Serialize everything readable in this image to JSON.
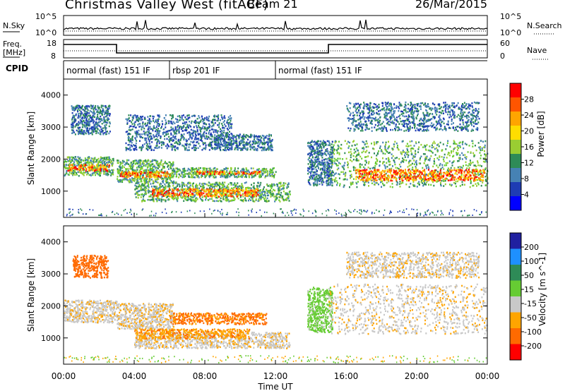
{
  "header": {
    "site": "Christmas Valley West (fitACF)",
    "beam": "Beam 21",
    "date": "26/Mar/2015"
  },
  "sky_panel": {
    "left_label": "N.Sky",
    "right_label": "N.Search",
    "axis_top": "10^5",
    "axis_bottom": "10^0"
  },
  "freq_panel": {
    "left_label_1": "Freq.",
    "left_label_2": "[MHz]",
    "left_top": "18",
    "left_bottom": "8",
    "right_label": "Nave",
    "right_top": "60",
    "right_bottom": "0"
  },
  "cpid_panel": {
    "label": "CPID",
    "segments": [
      {
        "start_hour": 0,
        "end_hour": 6,
        "label": "normal (fast) 151 IF"
      },
      {
        "start_hour": 6,
        "end_hour": 12,
        "label": "rbsp 201 IF"
      },
      {
        "start_hour": 12,
        "end_hour": 24,
        "label": "normal (fast) 151 IF"
      }
    ]
  },
  "colorbars": {
    "power": {
      "title": "Power [dB]",
      "ticks": [
        "28",
        "24",
        "20",
        "16",
        "12",
        "8",
        "4"
      ],
      "colors": [
        "#ff0000",
        "#ff5500",
        "#ffa500",
        "#ffdd00",
        "#9acd32",
        "#2e8b57",
        "#4682b4",
        "#1e3cb4",
        "#0000ff"
      ]
    },
    "velocity": {
      "title": "Velocity [m s^-1]",
      "ticks": [
        "200",
        "100",
        "50",
        "15",
        "-15",
        "-50",
        "-100",
        "-200"
      ],
      "colors": [
        "#2020a0",
        "#1e90ff",
        "#2e8b57",
        "#66cc33",
        "#c8c8c8",
        "#ffa500",
        "#ff6a00",
        "#ff0000"
      ]
    }
  },
  "chart_data": {
    "type": "heatmap",
    "xlabel": "Time UT",
    "x_ticks": [
      "00:00",
      "04:00",
      "08:00",
      "12:00",
      "16:00",
      "20:00",
      "00:00"
    ],
    "x_range_hours": [
      0,
      24
    ],
    "panels": [
      {
        "name": "power",
        "ylabel": "Slant Range [km]",
        "y_range": [
          180,
          4500
        ],
        "y_ticks": [
          1000,
          2000,
          3000,
          4000
        ],
        "regions": [
          {
            "t": [
              0,
              2.8
            ],
            "r": [
              1500,
              2100
            ],
            "level": "medium"
          },
          {
            "t": [
              0.2,
              2.6
            ],
            "r": [
              1650,
              1850
            ],
            "level": "high"
          },
          {
            "t": [
              0.4,
              2.6
            ],
            "r": [
              2800,
              3700
            ],
            "level": "low"
          },
          {
            "t": [
              3.0,
              6.2
            ],
            "r": [
              1300,
              2000
            ],
            "level": "medium"
          },
          {
            "t": [
              3.2,
              6.0
            ],
            "r": [
              1450,
              1650
            ],
            "level": "high"
          },
          {
            "t": [
              3.5,
              9.5
            ],
            "r": [
              2300,
              3400
            ],
            "level": "low"
          },
          {
            "t": [
              4.0,
              12.8
            ],
            "r": [
              700,
              1300
            ],
            "level": "medium"
          },
          {
            "t": [
              5.0,
              11.0
            ],
            "r": [
              850,
              1100
            ],
            "level": "high"
          },
          {
            "t": [
              6.0,
              12.0
            ],
            "r": [
              1450,
              1750
            ],
            "level": "medium"
          },
          {
            "t": [
              7.5,
              11.2
            ],
            "r": [
              1550,
              1650
            ],
            "level": "high"
          },
          {
            "t": [
              8.5,
              11.8
            ],
            "r": [
              2300,
              2800
            ],
            "level": "low"
          },
          {
            "t": [
              13.8,
              15.2
            ],
            "r": [
              1200,
              2600
            ],
            "level": "low"
          },
          {
            "t": [
              15.0,
              24.0
            ],
            "r": [
              1150,
              2600
            ],
            "level": "medium"
          },
          {
            "t": [
              16.5,
              23.8
            ],
            "r": [
              1350,
              1700
            ],
            "level": "high"
          },
          {
            "t": [
              16.0,
              23.5
            ],
            "r": [
              2900,
              3800
            ],
            "level": "low"
          }
        ]
      },
      {
        "name": "velocity",
        "ylabel": "Slant Range [km]",
        "y_range": [
          180,
          4500
        ],
        "y_ticks": [
          1000,
          2000,
          3000,
          4000
        ],
        "regions": [
          {
            "t": [
              0,
              3.0
            ],
            "r": [
              1500,
              2200
            ],
            "v": -5
          },
          {
            "t": [
              0.5,
              2.5
            ],
            "r": [
              2900,
              3600
            ],
            "v": -70
          },
          {
            "t": [
              3.0,
              6.2
            ],
            "r": [
              1300,
              2100
            ],
            "v": -5
          },
          {
            "t": [
              4.0,
              12.8
            ],
            "r": [
              700,
              1200
            ],
            "v": -5
          },
          {
            "t": [
              4.0,
              10.5
            ],
            "r": [
              1000,
              1300
            ],
            "v": -40
          },
          {
            "t": [
              6.0,
              11.5
            ],
            "r": [
              1450,
              1800
            ],
            "v": -60
          },
          {
            "t": [
              13.8,
              15.2
            ],
            "r": [
              1200,
              2600
            ],
            "v": 30
          },
          {
            "t": [
              15.0,
              24.0
            ],
            "r": [
              1150,
              2700
            ],
            "v": -5
          },
          {
            "t": [
              16.0,
              23.5
            ],
            "r": [
              2900,
              3700
            ],
            "v": -5
          }
        ]
      }
    ]
  }
}
